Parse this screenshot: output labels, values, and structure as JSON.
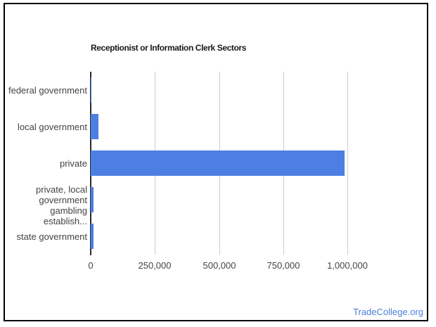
{
  "chart_data": {
    "type": "bar",
    "orientation": "horizontal",
    "title": "Receptionist or Information Clerk Sectors",
    "xlabel": "",
    "ylabel": "",
    "legend": "none",
    "grid": "vertical-only",
    "bar_color": "#4d7ee2",
    "axis_color": "#2b2b2b",
    "gridline_color": "#cccccc",
    "categories": [
      "federal government",
      "local government",
      "private",
      "private, local government gambling establish...",
      "state government"
    ],
    "category_display_lines": [
      [
        "federal government"
      ],
      [
        "local government"
      ],
      [
        "private"
      ],
      [
        "private, local",
        "government",
        "gambling establish..."
      ],
      [
        "state government"
      ]
    ],
    "values": [
      2000,
      30000,
      990000,
      10000,
      11000
    ],
    "xlim": [
      0,
      1180000
    ],
    "x_ticks": [
      {
        "value": 0,
        "label": "0"
      },
      {
        "value": 250000,
        "label": "250,000"
      },
      {
        "value": 500000,
        "label": "500,000"
      },
      {
        "value": 750000,
        "label": "750,000"
      },
      {
        "value": 1000000,
        "label": "1,000,000"
      }
    ]
  },
  "footer": {
    "link_label": "TradeCollege.org",
    "link_color": "#4a7fd9"
  }
}
